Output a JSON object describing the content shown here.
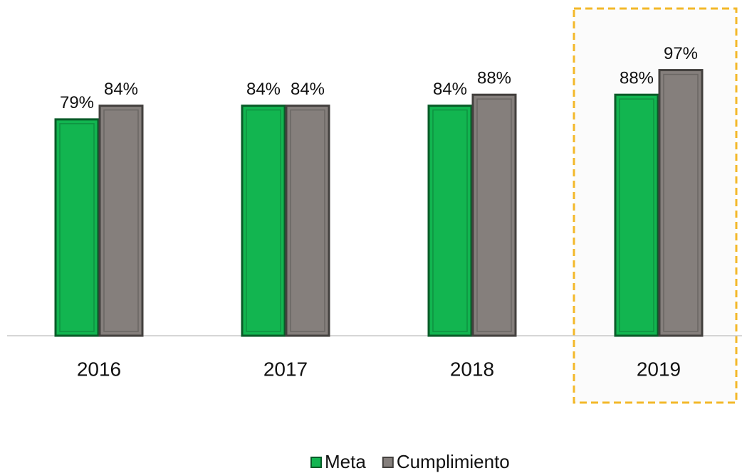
{
  "chart_data": {
    "type": "bar",
    "categories": [
      "2016",
      "2017",
      "2018",
      "2019"
    ],
    "series": [
      {
        "name": "Meta",
        "color": "#12b550",
        "values": [
          79,
          84,
          84,
          88
        ],
        "value_labels": [
          "79%",
          "84%",
          "84%",
          "88%"
        ]
      },
      {
        "name": "Cumplimiento",
        "color": "#857f7c",
        "values": [
          84,
          84,
          88,
          97
        ],
        "value_labels": [
          "84%",
          "84%",
          "88%",
          "97%"
        ]
      }
    ],
    "ylim": [
      0,
      100
    ]
  }
}
